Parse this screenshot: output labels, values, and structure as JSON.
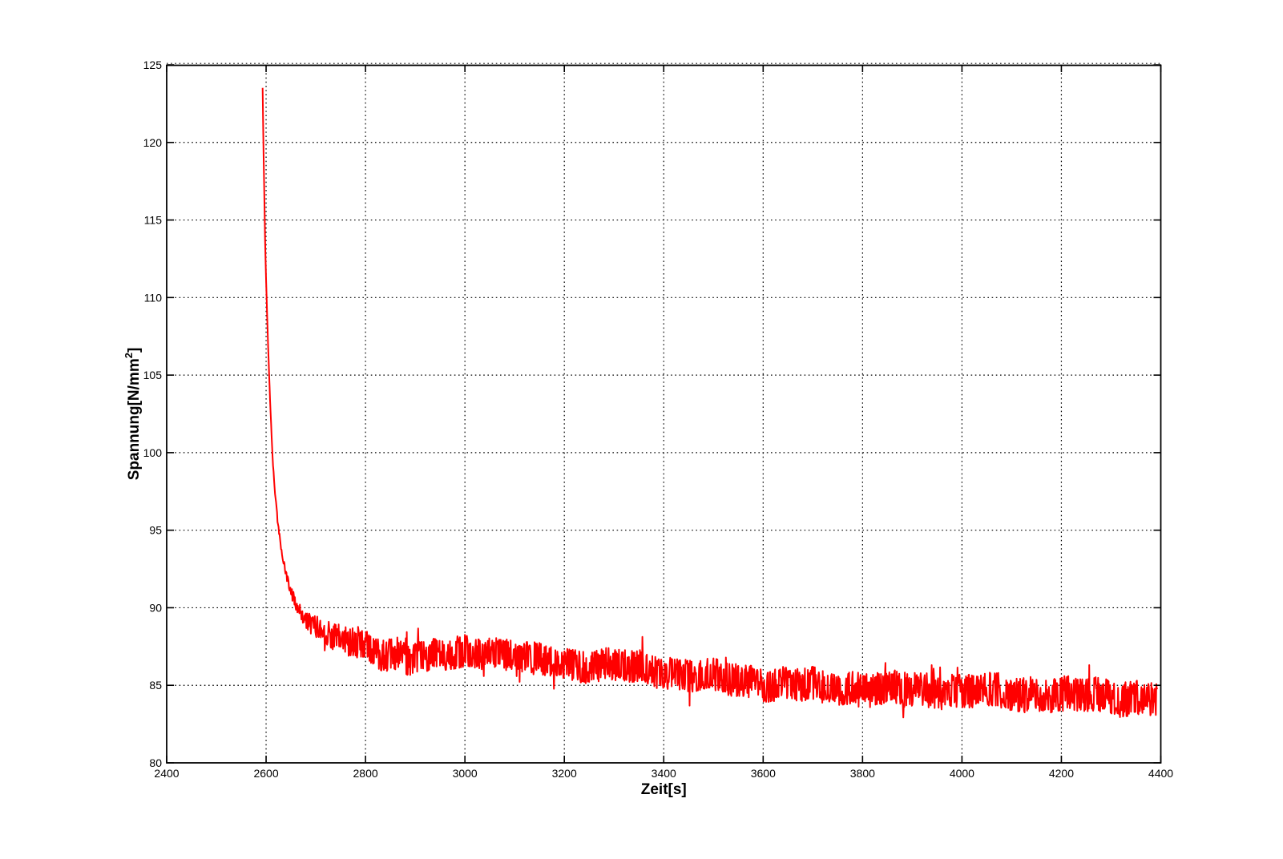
{
  "figure": {
    "background": "#FFFFFF"
  },
  "chart_data": {
    "type": "line",
    "title": "",
    "xlabel": "Zeit[s]",
    "ylabel": "Spannung[N/mm2]",
    "ylabel_parts": {
      "main": "Spannung[N/mm",
      "sup": "2",
      "end": "]"
    },
    "xlim": [
      2400,
      4400
    ],
    "ylim": [
      80,
      125
    ],
    "xticks": [
      2400,
      2600,
      2800,
      3000,
      3200,
      3400,
      3600,
      3800,
      4000,
      4200,
      4400
    ],
    "yticks": [
      80,
      85,
      90,
      95,
      100,
      105,
      110,
      115,
      120,
      125
    ],
    "grid": "dotted",
    "legend": "none",
    "colors": {
      "line": "#FF0000",
      "axis": "#000000",
      "grid": "#000000",
      "background": "#FFFFFF"
    },
    "line_width": 2,
    "tick_length": 9,
    "series": [
      {
        "name": "Spannung",
        "color": "#FF0000",
        "x_start": 2593,
        "x_end": 4393,
        "sample_step": 1,
        "trend": [
          [
            2593,
            123.4
          ],
          [
            2594,
            121.2
          ],
          [
            2596,
            117.2
          ],
          [
            2598,
            113.6
          ],
          [
            2600,
            111.0
          ],
          [
            2602,
            108.9
          ],
          [
            2604,
            106.9
          ],
          [
            2606,
            105.1
          ],
          [
            2608,
            103.4
          ],
          [
            2610,
            101.9
          ],
          [
            2612,
            100.4
          ],
          [
            2614,
            99.2
          ],
          [
            2616,
            98.2
          ],
          [
            2619,
            97.0
          ],
          [
            2622,
            96.0
          ],
          [
            2625,
            95.1
          ],
          [
            2628,
            94.3
          ],
          [
            2632,
            93.4
          ],
          [
            2636,
            92.7
          ],
          [
            2640,
            92.1
          ],
          [
            2645,
            91.5
          ],
          [
            2650,
            91.0
          ],
          [
            2656,
            90.6
          ],
          [
            2662,
            90.2
          ],
          [
            2670,
            89.8
          ],
          [
            2680,
            89.4
          ],
          [
            2690,
            89.1
          ],
          [
            2700,
            88.9
          ],
          [
            2715,
            88.5
          ],
          [
            2730,
            88.2
          ],
          [
            2750,
            88.0
          ],
          [
            2770,
            87.7
          ],
          [
            2800,
            87.4
          ],
          [
            2830,
            87.1
          ],
          [
            2860,
            86.9
          ],
          [
            2900,
            86.8
          ],
          [
            2950,
            86.9
          ],
          [
            3000,
            87.1
          ],
          [
            3040,
            87.2
          ],
          [
            3080,
            87.0
          ],
          [
            3120,
            86.7
          ],
          [
            3160,
            86.5
          ],
          [
            3200,
            86.4
          ],
          [
            3260,
            86.3
          ],
          [
            3320,
            86.2
          ],
          [
            3380,
            86.0
          ],
          [
            3440,
            85.7
          ],
          [
            3500,
            85.5
          ],
          [
            3560,
            85.3
          ],
          [
            3620,
            85.1
          ],
          [
            3680,
            85.0
          ],
          [
            3740,
            84.9
          ],
          [
            3800,
            84.8
          ],
          [
            3900,
            84.7
          ],
          [
            4000,
            84.6
          ],
          [
            4100,
            84.5
          ],
          [
            4200,
            84.4
          ],
          [
            4300,
            84.3
          ],
          [
            4393,
            84.1
          ]
        ],
        "noise": {
          "seed": 42,
          "amplitude_envelope": [
            [
              2593,
              0.03
            ],
            [
              2615,
              0.08
            ],
            [
              2640,
              0.25
            ],
            [
              2660,
              0.45
            ],
            [
              2680,
              0.6
            ],
            [
              2700,
              0.7
            ],
            [
              2730,
              0.85
            ],
            [
              2760,
              1.0
            ],
            [
              2800,
              1.05
            ],
            [
              3000,
              1.05
            ],
            [
              3500,
              1.05
            ],
            [
              4000,
              1.1
            ],
            [
              4393,
              1.15
            ]
          ],
          "shape_power": 0.65,
          "spike_probability": 0.03,
          "spike_scale": 1.9,
          "wiggles": [
            {
              "amp": 0.12,
              "period": 29
            },
            {
              "amp": 0.09,
              "period": 11.3
            }
          ]
        }
      }
    ]
  }
}
